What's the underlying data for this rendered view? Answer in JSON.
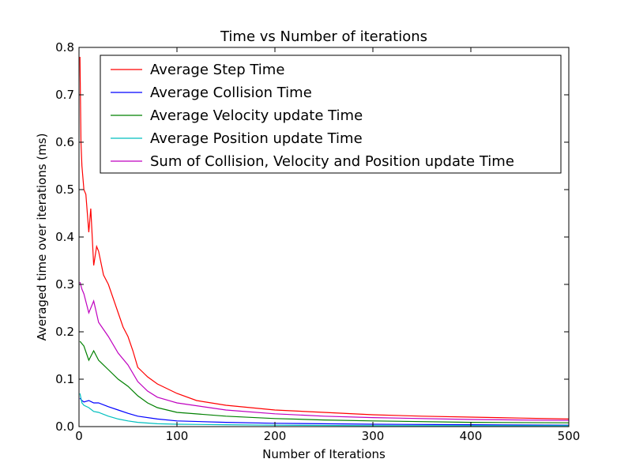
{
  "chart_data": {
    "type": "line",
    "title": "Time vs Number of iterations",
    "xlabel": "Number of Iterations",
    "ylabel": "Averaged time over iterations (ms)",
    "xlim": [
      0,
      500
    ],
    "ylim": [
      0,
      0.8
    ],
    "x_ticks": [
      0,
      100,
      200,
      300,
      400,
      500
    ],
    "y_ticks": [
      0.0,
      0.1,
      0.2,
      0.3,
      0.4,
      0.5,
      0.6,
      0.7,
      0.8
    ],
    "x_tick_labels": [
      "0",
      "100",
      "200",
      "300",
      "400",
      "500"
    ],
    "y_tick_labels": [
      "0.0",
      "0.1",
      "0.2",
      "0.3",
      "0.4",
      "0.5",
      "0.6",
      "0.7",
      "0.8"
    ],
    "grid": false,
    "legend_position": "top-right",
    "series": [
      {
        "name": "Average Step Time",
        "color": "#ff0000",
        "x": [
          1,
          2,
          3,
          5,
          7,
          10,
          12,
          15,
          18,
          20,
          25,
          30,
          35,
          40,
          45,
          50,
          55,
          60,
          65,
          70,
          80,
          90,
          100,
          120,
          150,
          200,
          250,
          300,
          350,
          400,
          450,
          500
        ],
        "y": [
          0.78,
          0.6,
          0.55,
          0.5,
          0.49,
          0.41,
          0.46,
          0.34,
          0.38,
          0.37,
          0.32,
          0.3,
          0.27,
          0.24,
          0.21,
          0.19,
          0.16,
          0.125,
          0.115,
          0.105,
          0.09,
          0.08,
          0.07,
          0.055,
          0.045,
          0.035,
          0.03,
          0.025,
          0.022,
          0.02,
          0.018,
          0.016
        ]
      },
      {
        "name": "Average Collision Time",
        "color": "#0000ff",
        "x": [
          1,
          3,
          5,
          10,
          15,
          20,
          30,
          40,
          50,
          60,
          80,
          100,
          150,
          200,
          300,
          400,
          500
        ],
        "y": [
          0.06,
          0.055,
          0.052,
          0.055,
          0.05,
          0.05,
          0.042,
          0.035,
          0.028,
          0.022,
          0.016,
          0.012,
          0.009,
          0.007,
          0.005,
          0.004,
          0.003
        ]
      },
      {
        "name": "Average Velocity update Time",
        "color": "#008000",
        "x": [
          1,
          3,
          5,
          10,
          15,
          20,
          30,
          40,
          50,
          60,
          70,
          80,
          100,
          150,
          200,
          250,
          300,
          400,
          500
        ],
        "y": [
          0.18,
          0.175,
          0.17,
          0.14,
          0.16,
          0.14,
          0.12,
          0.1,
          0.085,
          0.065,
          0.05,
          0.04,
          0.03,
          0.022,
          0.017,
          0.014,
          0.012,
          0.009,
          0.008
        ]
      },
      {
        "name": "Average Position update Time",
        "color": "#00bfbf",
        "x": [
          1,
          3,
          5,
          10,
          15,
          20,
          30,
          40,
          50,
          60,
          80,
          100,
          150,
          200,
          300,
          400,
          500
        ],
        "y": [
          0.07,
          0.05,
          0.045,
          0.04,
          0.032,
          0.03,
          0.022,
          0.016,
          0.012,
          0.009,
          0.006,
          0.005,
          0.004,
          0.003,
          0.002,
          0.002,
          0.002
        ]
      },
      {
        "name": "Sum of Collision, Velocity and Position update Time",
        "color": "#bf00bf",
        "x": [
          1,
          3,
          5,
          10,
          15,
          20,
          30,
          40,
          50,
          60,
          70,
          80,
          100,
          150,
          200,
          250,
          300,
          400,
          500
        ],
        "y": [
          0.305,
          0.29,
          0.28,
          0.24,
          0.265,
          0.22,
          0.19,
          0.155,
          0.13,
          0.095,
          0.075,
          0.062,
          0.05,
          0.035,
          0.027,
          0.022,
          0.019,
          0.015,
          0.013
        ]
      }
    ]
  }
}
